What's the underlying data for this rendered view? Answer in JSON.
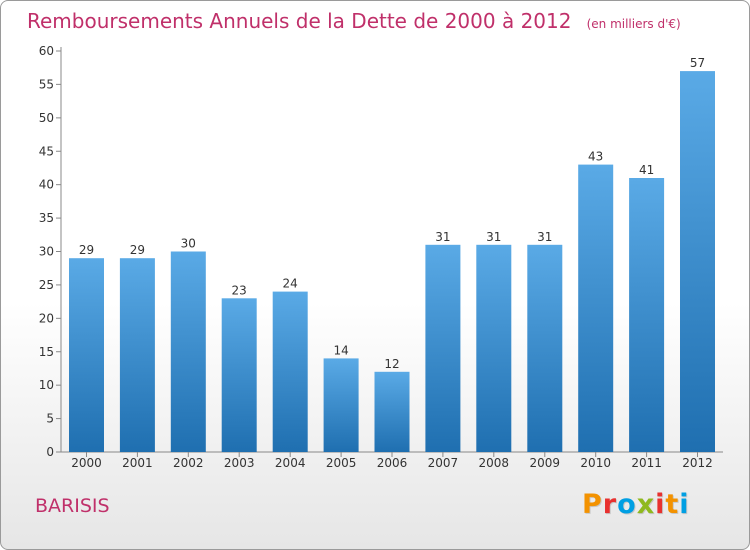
{
  "header": {
    "title": "Remboursements Annuels de la Dette de 2000 à 2012",
    "unit_note": "(en milliers d'€)"
  },
  "footer": {
    "commune": "BARISIS",
    "logo_letters": [
      "P",
      "r",
      "o",
      "x",
      "i",
      "t",
      "i"
    ]
  },
  "colors": {
    "title": "#c0306a",
    "bar_top": "#5aaae6",
    "bar_bottom": "#1f6fb0",
    "logo": [
      "#f39200",
      "#e8312f",
      "#009fe3",
      "#8fb91e",
      "#e8312f",
      "#f39200",
      "#009fe3"
    ]
  },
  "chart_data": {
    "type": "bar",
    "title": "Remboursements Annuels de la Dette de 2000 à 2012",
    "categories": [
      "2000",
      "2001",
      "2002",
      "2003",
      "2004",
      "2005",
      "2006",
      "2007",
      "2008",
      "2009",
      "2010",
      "2011",
      "2012"
    ],
    "values": [
      29,
      29,
      30,
      23,
      24,
      14,
      12,
      31,
      31,
      31,
      43,
      41,
      57
    ],
    "ylim": [
      0,
      60
    ],
    "yticks": [
      0,
      5,
      10,
      15,
      20,
      25,
      30,
      35,
      40,
      45,
      50,
      55,
      60
    ],
    "grid": false,
    "data_labels": true
  }
}
